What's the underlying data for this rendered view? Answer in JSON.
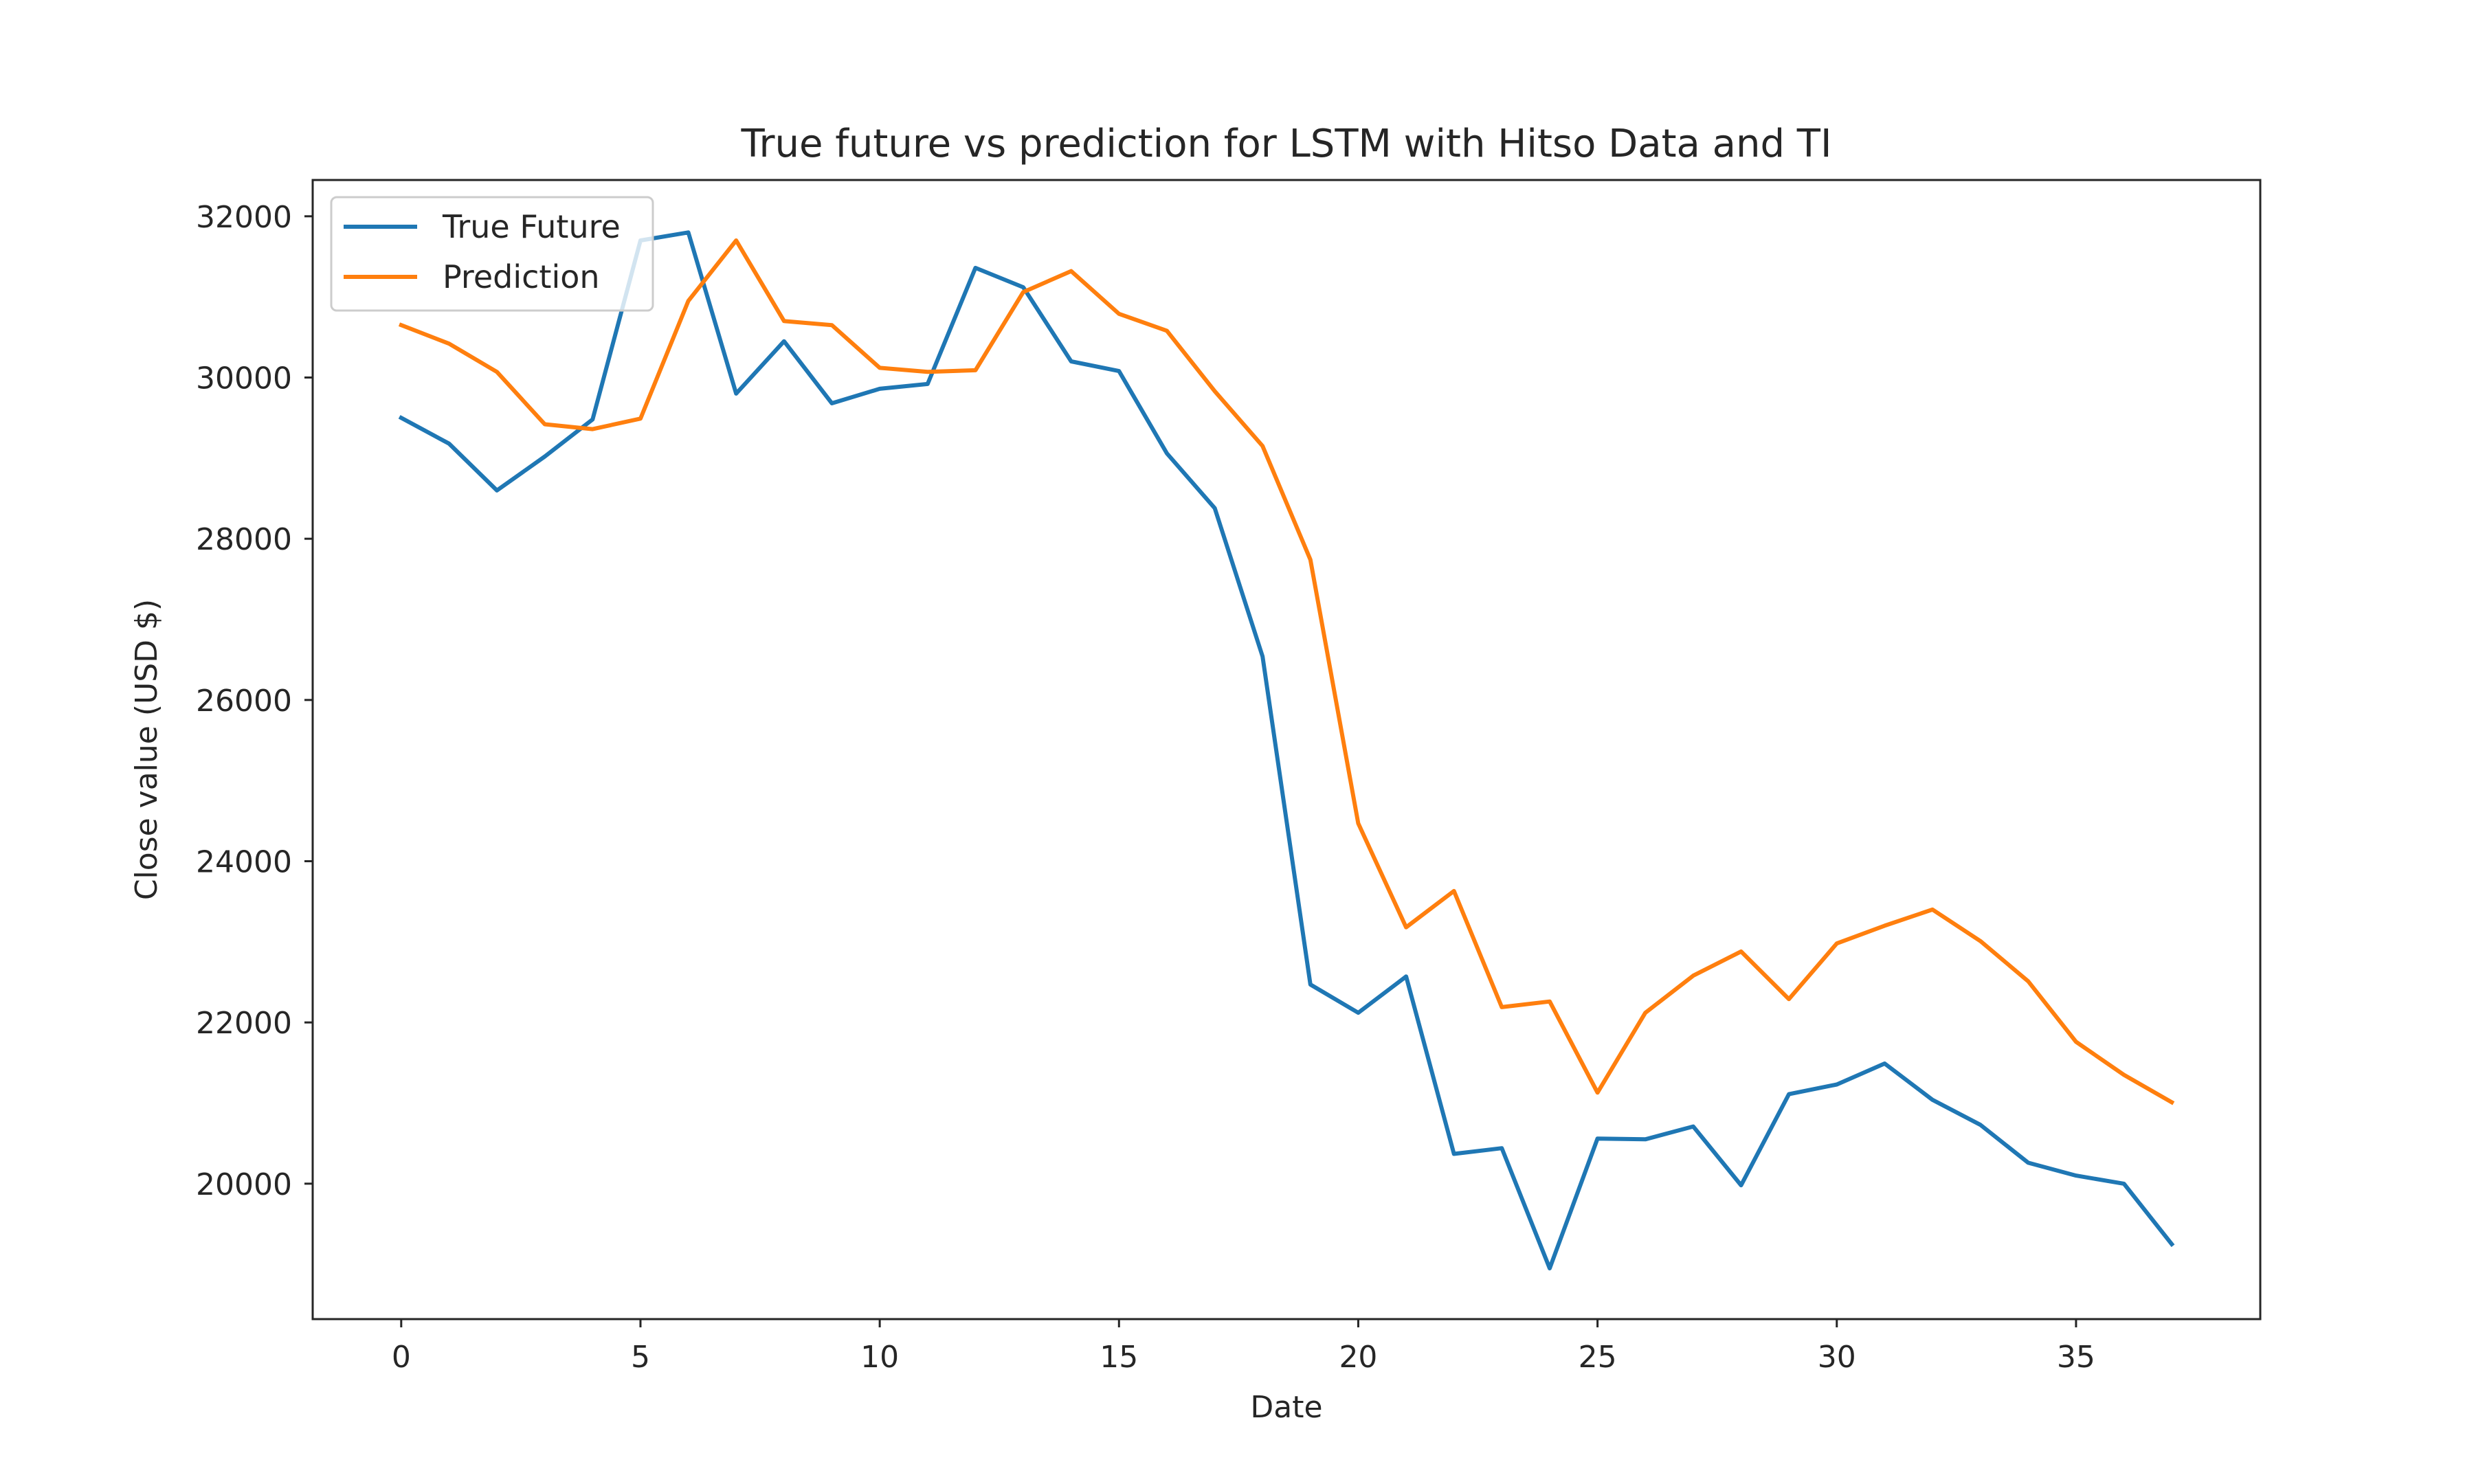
{
  "chart_data": {
    "type": "line",
    "title": "True future vs prediction for LSTM with Hitso Data and TI",
    "xlabel": "Date",
    "ylabel": "Close value (USD $)",
    "xlim": [
      -1.85,
      38.85
    ],
    "ylim": [
      18320,
      32450
    ],
    "xticks": [
      0,
      5,
      10,
      15,
      20,
      25,
      30,
      35
    ],
    "yticks": [
      20000,
      22000,
      24000,
      26000,
      28000,
      30000,
      32000
    ],
    "grid": false,
    "legend_position": "top-left",
    "x": [
      0,
      1,
      2,
      3,
      4,
      5,
      6,
      7,
      8,
      9,
      10,
      11,
      12,
      13,
      14,
      15,
      16,
      17,
      18,
      19,
      20,
      21,
      22,
      23,
      24,
      25,
      26,
      27,
      28,
      29,
      30,
      31,
      32,
      33,
      34,
      35,
      36,
      37
    ],
    "series": [
      {
        "name": "True Future",
        "color": "#1f77b4",
        "values": [
          29500,
          29180,
          28600,
          29020,
          29480,
          31700,
          31800,
          29800,
          30450,
          29680,
          29860,
          29920,
          31360,
          31120,
          30200,
          30080,
          29060,
          28380,
          26540,
          22470,
          22120,
          22570,
          20370,
          20440,
          18950,
          20560,
          20550,
          20710,
          19980,
          21110,
          21230,
          21490,
          21040,
          20730,
          20260,
          20100,
          20000,
          19250
        ]
      },
      {
        "name": "Prediction",
        "color": "#ff7f0e",
        "values": [
          30650,
          30420,
          30070,
          29420,
          29360,
          29490,
          30950,
          31700,
          30700,
          30650,
          30120,
          30070,
          30090,
          31060,
          31320,
          30790,
          30580,
          29830,
          29150,
          27740,
          24470,
          23180,
          23630,
          22190,
          22260,
          21130,
          22120,
          22580,
          22880,
          22290,
          22980,
          23200,
          23400,
          23010,
          22510,
          21760,
          21350,
          21010
        ]
      }
    ]
  }
}
